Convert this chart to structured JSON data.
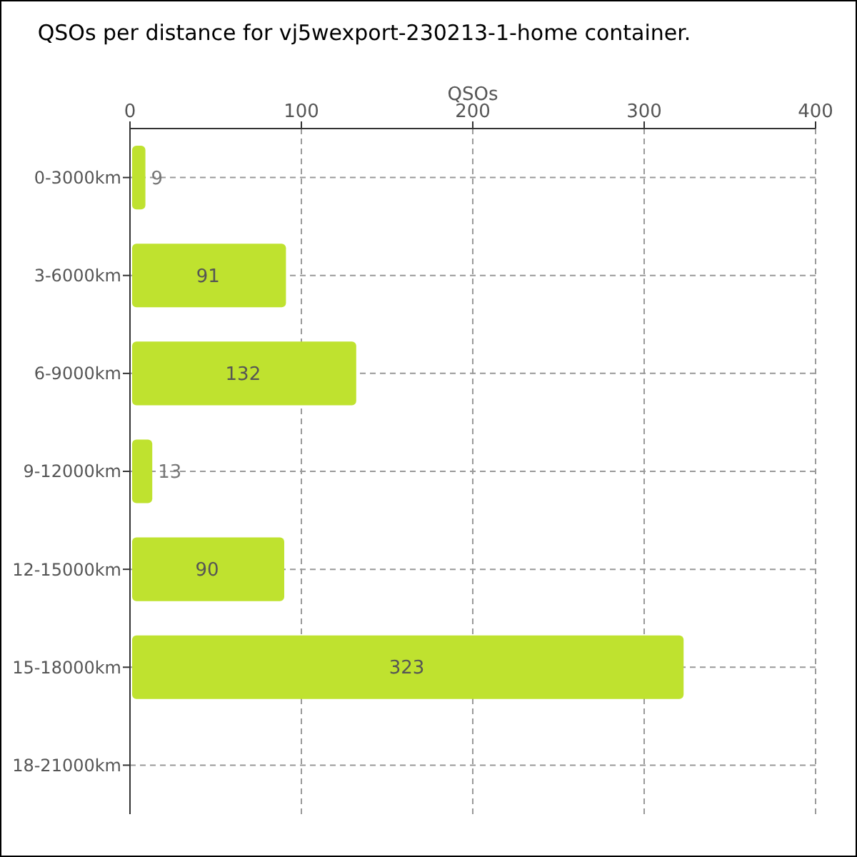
{
  "chart_data": {
    "type": "bar",
    "orientation": "horizontal",
    "title": "QSOs per distance for vj5wexport-230213-1-home container.",
    "xlabel": "QSOs",
    "categories": [
      "0-3000km",
      "3-6000km",
      "6-9000km",
      "9-12000km",
      "12-15000km",
      "15-18000km",
      "18-21000km"
    ],
    "values": [
      9,
      91,
      132,
      13,
      90,
      323,
      0
    ],
    "value_labels": [
      "9",
      "91",
      "132",
      "13",
      "90",
      "323",
      null
    ],
    "color": "#bfe22f",
    "xlim": [
      0,
      400
    ],
    "xticks": [
      0,
      100,
      200,
      300,
      400
    ],
    "grid": true
  }
}
